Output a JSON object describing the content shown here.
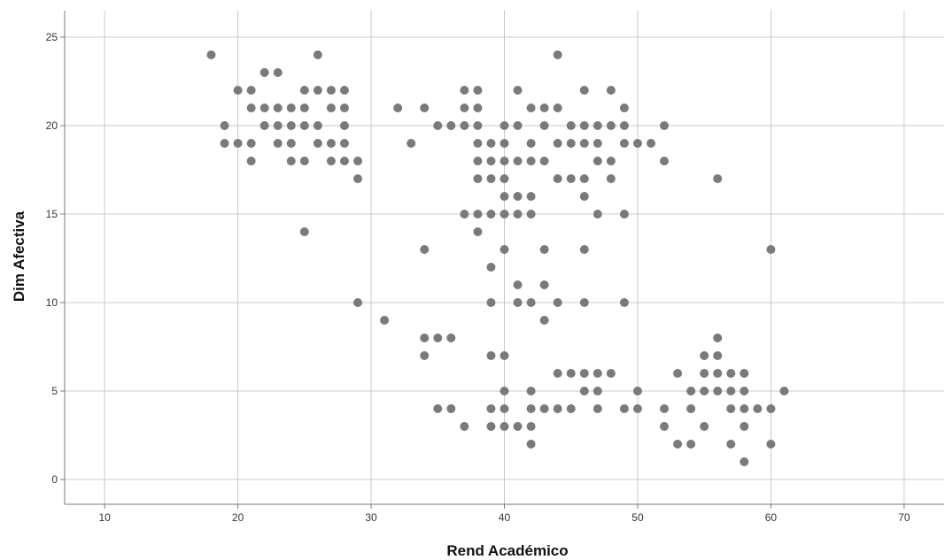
{
  "chart_data": {
    "type": "scatter",
    "xlabel": "Rend Académico",
    "ylabel": "Dim Afectiva",
    "xlim": [
      7,
      73
    ],
    "ylim": [
      -1.4,
      26.5
    ],
    "xticks": [
      10,
      20,
      30,
      40,
      50,
      60,
      70
    ],
    "yticks": [
      0,
      5,
      10,
      15,
      20,
      25
    ],
    "grid": true,
    "point_color": "#7a7a7a",
    "points": [
      [
        18,
        24
      ],
      [
        26,
        24
      ],
      [
        44,
        24
      ],
      [
        22,
        23
      ],
      [
        23,
        23
      ],
      [
        20,
        22
      ],
      [
        21,
        22
      ],
      [
        25,
        22
      ],
      [
        26,
        22
      ],
      [
        27,
        22
      ],
      [
        28,
        22
      ],
      [
        37,
        22
      ],
      [
        38,
        22
      ],
      [
        41,
        22
      ],
      [
        46,
        22
      ],
      [
        48,
        22
      ],
      [
        21,
        21
      ],
      [
        22,
        21
      ],
      [
        23,
        21
      ],
      [
        24,
        21
      ],
      [
        25,
        21
      ],
      [
        27,
        21
      ],
      [
        28,
        21
      ],
      [
        32,
        21
      ],
      [
        34,
        21
      ],
      [
        37,
        21
      ],
      [
        38,
        21
      ],
      [
        42,
        21
      ],
      [
        43,
        21
      ],
      [
        44,
        21
      ],
      [
        49,
        21
      ],
      [
        19,
        20
      ],
      [
        22,
        20
      ],
      [
        23,
        20
      ],
      [
        24,
        20
      ],
      [
        25,
        20
      ],
      [
        26,
        20
      ],
      [
        28,
        20
      ],
      [
        35,
        20
      ],
      [
        36,
        20
      ],
      [
        37,
        20
      ],
      [
        38,
        20
      ],
      [
        40,
        20
      ],
      [
        41,
        20
      ],
      [
        43,
        20
      ],
      [
        45,
        20
      ],
      [
        46,
        20
      ],
      [
        47,
        20
      ],
      [
        48,
        20
      ],
      [
        49,
        20
      ],
      [
        52,
        20
      ],
      [
        19,
        19
      ],
      [
        20,
        19
      ],
      [
        21,
        19
      ],
      [
        23,
        19
      ],
      [
        24,
        19
      ],
      [
        26,
        19
      ],
      [
        27,
        19
      ],
      [
        28,
        19
      ],
      [
        33,
        19
      ],
      [
        38,
        19
      ],
      [
        39,
        19
      ],
      [
        40,
        19
      ],
      [
        42,
        19
      ],
      [
        44,
        19
      ],
      [
        45,
        19
      ],
      [
        46,
        19
      ],
      [
        47,
        19
      ],
      [
        49,
        19
      ],
      [
        50,
        19
      ],
      [
        51,
        19
      ],
      [
        21,
        18
      ],
      [
        24,
        18
      ],
      [
        25,
        18
      ],
      [
        27,
        18
      ],
      [
        28,
        18
      ],
      [
        29,
        18
      ],
      [
        38,
        18
      ],
      [
        39,
        18
      ],
      [
        40,
        18
      ],
      [
        41,
        18
      ],
      [
        42,
        18
      ],
      [
        43,
        18
      ],
      [
        47,
        18
      ],
      [
        48,
        18
      ],
      [
        52,
        18
      ],
      [
        29,
        17
      ],
      [
        38,
        17
      ],
      [
        39,
        17
      ],
      [
        40,
        17
      ],
      [
        44,
        17
      ],
      [
        45,
        17
      ],
      [
        46,
        17
      ],
      [
        48,
        17
      ],
      [
        56,
        17
      ],
      [
        40,
        16
      ],
      [
        41,
        16
      ],
      [
        42,
        16
      ],
      [
        46,
        16
      ],
      [
        37,
        15
      ],
      [
        38,
        15
      ],
      [
        39,
        15
      ],
      [
        40,
        15
      ],
      [
        41,
        15
      ],
      [
        42,
        15
      ],
      [
        47,
        15
      ],
      [
        49,
        15
      ],
      [
        25,
        14
      ],
      [
        38,
        14
      ],
      [
        34,
        13
      ],
      [
        40,
        13
      ],
      [
        43,
        13
      ],
      [
        46,
        13
      ],
      [
        60,
        13
      ],
      [
        39,
        12
      ],
      [
        41,
        11
      ],
      [
        43,
        11
      ],
      [
        29,
        10
      ],
      [
        39,
        10
      ],
      [
        41,
        10
      ],
      [
        42,
        10
      ],
      [
        44,
        10
      ],
      [
        46,
        10
      ],
      [
        49,
        10
      ],
      [
        31,
        9
      ],
      [
        43,
        9
      ],
      [
        34,
        8
      ],
      [
        35,
        8
      ],
      [
        36,
        8
      ],
      [
        56,
        8
      ],
      [
        34,
        7
      ],
      [
        39,
        7
      ],
      [
        40,
        7
      ],
      [
        55,
        7
      ],
      [
        56,
        7
      ],
      [
        44,
        6
      ],
      [
        45,
        6
      ],
      [
        46,
        6
      ],
      [
        47,
        6
      ],
      [
        48,
        6
      ],
      [
        53,
        6
      ],
      [
        55,
        6
      ],
      [
        56,
        6
      ],
      [
        57,
        6
      ],
      [
        58,
        6
      ],
      [
        40,
        5
      ],
      [
        42,
        5
      ],
      [
        46,
        5
      ],
      [
        47,
        5
      ],
      [
        50,
        5
      ],
      [
        54,
        5
      ],
      [
        55,
        5
      ],
      [
        56,
        5
      ],
      [
        57,
        5
      ],
      [
        58,
        5
      ],
      [
        61,
        5
      ],
      [
        35,
        4
      ],
      [
        36,
        4
      ],
      [
        39,
        4
      ],
      [
        40,
        4
      ],
      [
        42,
        4
      ],
      [
        43,
        4
      ],
      [
        44,
        4
      ],
      [
        45,
        4
      ],
      [
        47,
        4
      ],
      [
        49,
        4
      ],
      [
        50,
        4
      ],
      [
        52,
        4
      ],
      [
        54,
        4
      ],
      [
        57,
        4
      ],
      [
        58,
        4
      ],
      [
        59,
        4
      ],
      [
        60,
        4
      ],
      [
        37,
        3
      ],
      [
        39,
        3
      ],
      [
        40,
        3
      ],
      [
        41,
        3
      ],
      [
        42,
        3
      ],
      [
        52,
        3
      ],
      [
        55,
        3
      ],
      [
        58,
        3
      ],
      [
        42,
        2
      ],
      [
        53,
        2
      ],
      [
        54,
        2
      ],
      [
        57,
        2
      ],
      [
        60,
        2
      ],
      [
        58,
        1
      ]
    ]
  }
}
